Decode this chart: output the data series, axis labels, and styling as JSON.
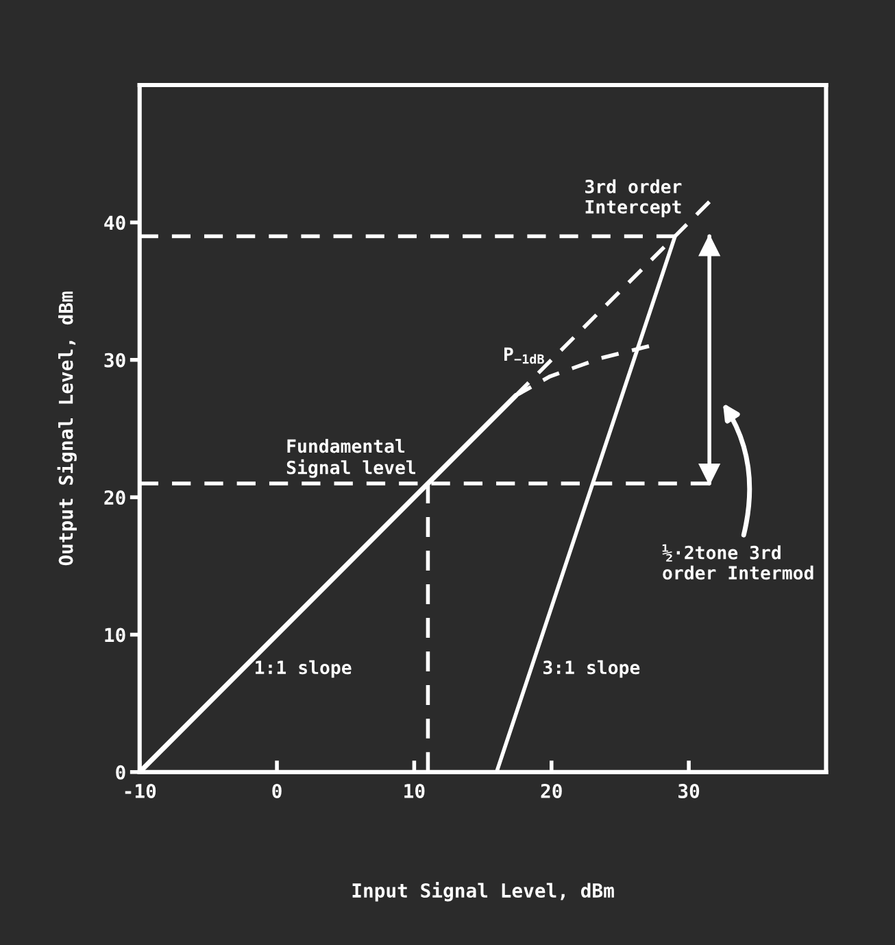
{
  "chart_data": {
    "type": "line",
    "xlabel": "Input Signal Level, dBm",
    "ylabel": "Output Signal Level, dBm",
    "xlim": [
      -10,
      40
    ],
    "ylim": [
      0,
      50
    ],
    "xticks": [
      -10,
      0,
      10,
      20,
      30
    ],
    "yticks": [
      0,
      10,
      20,
      30,
      40
    ],
    "grid": false,
    "legend": false,
    "series": [
      {
        "name": "1:1 slope",
        "color": "#ffffff",
        "line_style": "solid",
        "x": [
          -10,
          17.4
        ],
        "values": [
          0,
          27.4
        ]
      },
      {
        "color": "#ffffff",
        "line_style": "dashed",
        "x": [
          17.4,
          31.5
        ],
        "values": [
          27.4,
          41.5
        ]
      },
      {
        "color": "#ffffff",
        "line_style": "dashed",
        "x": [
          17.4,
          19.9,
          23.5,
          27.1
        ],
        "values": [
          27.4,
          28.8,
          30.1,
          31.0
        ]
      },
      {
        "name": "3:1 slope",
        "color": "#ffffff",
        "line_style": "solid",
        "x": [
          16,
          29
        ],
        "values": [
          0,
          39
        ]
      },
      {
        "color": "#ffffff",
        "line_style": "dashed",
        "x": [
          -10,
          29
        ],
        "values": [
          39,
          39
        ]
      },
      {
        "color": "#ffffff",
        "line_style": "dashed",
        "x": [
          -10,
          31.5
        ],
        "values": [
          21,
          21
        ]
      },
      {
        "color": "#ffffff",
        "line_style": "dashed",
        "x": [
          11,
          11
        ],
        "values": [
          0,
          21
        ]
      },
      {
        "color": "#ffffff",
        "line_style": "solid",
        "x": [
          31.5,
          31.5
        ],
        "values": [
          21,
          39
        ]
      }
    ],
    "annotations": [
      {
        "text": "3rd order\nIntercept",
        "x": 29,
        "y": 39
      },
      {
        "text": "P$_{−1dB}$",
        "x": 18,
        "y": 28
      },
      {
        "text": "Fundamental\nSignal level",
        "x": 11,
        "y": 21
      },
      "½·2tone 3rd\norder Intermod"
    ]
  }
}
